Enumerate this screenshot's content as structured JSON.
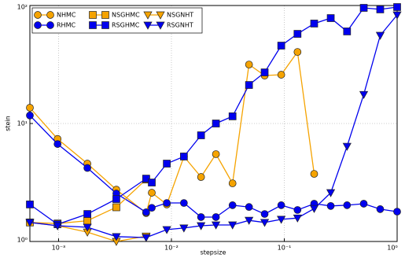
{
  "chart_data": {
    "type": "line",
    "xlabel": "stepsize",
    "ylabel": "stein",
    "xscale": "log",
    "yscale": "log",
    "grid": true,
    "legend": "upper left",
    "xlim": [
      0.000557,
      1
    ],
    "ylim": [
      1,
      100
    ],
    "xticks": [
      {
        "value": 0.001,
        "label": "10⁻³"
      },
      {
        "value": 0.01,
        "label": "10⁻²"
      },
      {
        "value": 0.1,
        "label": "10⁻¹"
      },
      {
        "value": 1,
        "label": "10⁰"
      }
    ],
    "yticks": [
      {
        "value": 1,
        "label": "10⁰"
      },
      {
        "value": 10,
        "label": "10¹"
      },
      {
        "value": 100,
        "label": "10²"
      }
    ],
    "series": [
      {
        "name": "NHMC",
        "color": "#f5a300",
        "marker": "circle",
        "x": [
          0.000557,
          0.00098,
          0.0018,
          0.00325,
          0.00597,
          0.0067,
          0.0091,
          0.0129,
          0.0183,
          0.0248,
          0.0348,
          0.0487,
          0.067,
          0.094,
          0.131,
          0.184
        ],
        "values": [
          13.6,
          7.4,
          4.57,
          2.75,
          1.74,
          2.59,
          2.06,
          5.25,
          3.52,
          5.5,
          3.11,
          31.6,
          25.5,
          25.9,
          40.4,
          3.74
        ]
      },
      {
        "name": "RHMC",
        "color": "#0000ee",
        "marker": "circle",
        "x": [
          0.000557,
          0.00098,
          0.0018,
          0.00325,
          0.00597,
          0.0067,
          0.0091,
          0.0129,
          0.0183,
          0.0248,
          0.0348,
          0.0487,
          0.067,
          0.094,
          0.131,
          0.184,
          0.258,
          0.36,
          0.506,
          0.708,
          1
        ],
        "values": [
          11.7,
          6.7,
          4.2,
          2.55,
          1.77,
          1.93,
          2.12,
          2.12,
          1.61,
          1.61,
          2.03,
          1.96,
          1.71,
          2.03,
          1.85,
          2.09,
          2.0,
          2.03,
          2.09,
          1.88,
          1.79
        ]
      },
      {
        "name": "NSGHMC",
        "color": "#f5a300",
        "marker": "square",
        "x": [
          0.000557,
          0.00098,
          0.0018,
          0.00325,
          0.00597
        ],
        "values": [
          1.45,
          1.42,
          1.5,
          1.95,
          3.35
        ]
      },
      {
        "name": "RSGHMC",
        "color": "#0000ee",
        "marker": "square",
        "x": [
          0.000557,
          0.00098,
          0.0018,
          0.00325,
          0.00597,
          0.0067,
          0.0091,
          0.0129,
          0.0183,
          0.0248,
          0.0348,
          0.0487,
          0.067,
          0.094,
          0.131,
          0.184,
          0.258,
          0.36,
          0.506,
          0.708,
          1
        ],
        "values": [
          2.06,
          1.4,
          1.71,
          2.29,
          3.41,
          3.16,
          4.57,
          5.25,
          7.94,
          10,
          11.5,
          21.2,
          27.1,
          45.7,
          57.5,
          70.3,
          78.2,
          60.3,
          95.5,
          92.7,
          97
        ]
      },
      {
        "name": "NSGNHT",
        "color": "#f5a300",
        "marker": "triangle-down",
        "x": [
          0.000557,
          0.00098,
          0.0018,
          0.00325,
          0.00597
        ],
        "values": [
          1.45,
          1.36,
          1.2,
          1.0,
          1.11
        ]
      },
      {
        "name": "RSGNHT",
        "color": "#0000ee",
        "marker": "triangle-down",
        "x": [
          0.000557,
          0.00098,
          0.0018,
          0.00325,
          0.00597,
          0.0091,
          0.0129,
          0.0183,
          0.0248,
          0.0348,
          0.0487,
          0.067,
          0.094,
          0.131,
          0.184,
          0.258,
          0.36,
          0.506,
          0.708,
          1
        ],
        "values": [
          1.45,
          1.36,
          1.32,
          1.1,
          1.08,
          1.26,
          1.3,
          1.36,
          1.38,
          1.38,
          1.51,
          1.45,
          1.54,
          1.58,
          1.9,
          2.59,
          6.4,
          17.6,
          55.8,
          83.2
        ]
      }
    ]
  }
}
